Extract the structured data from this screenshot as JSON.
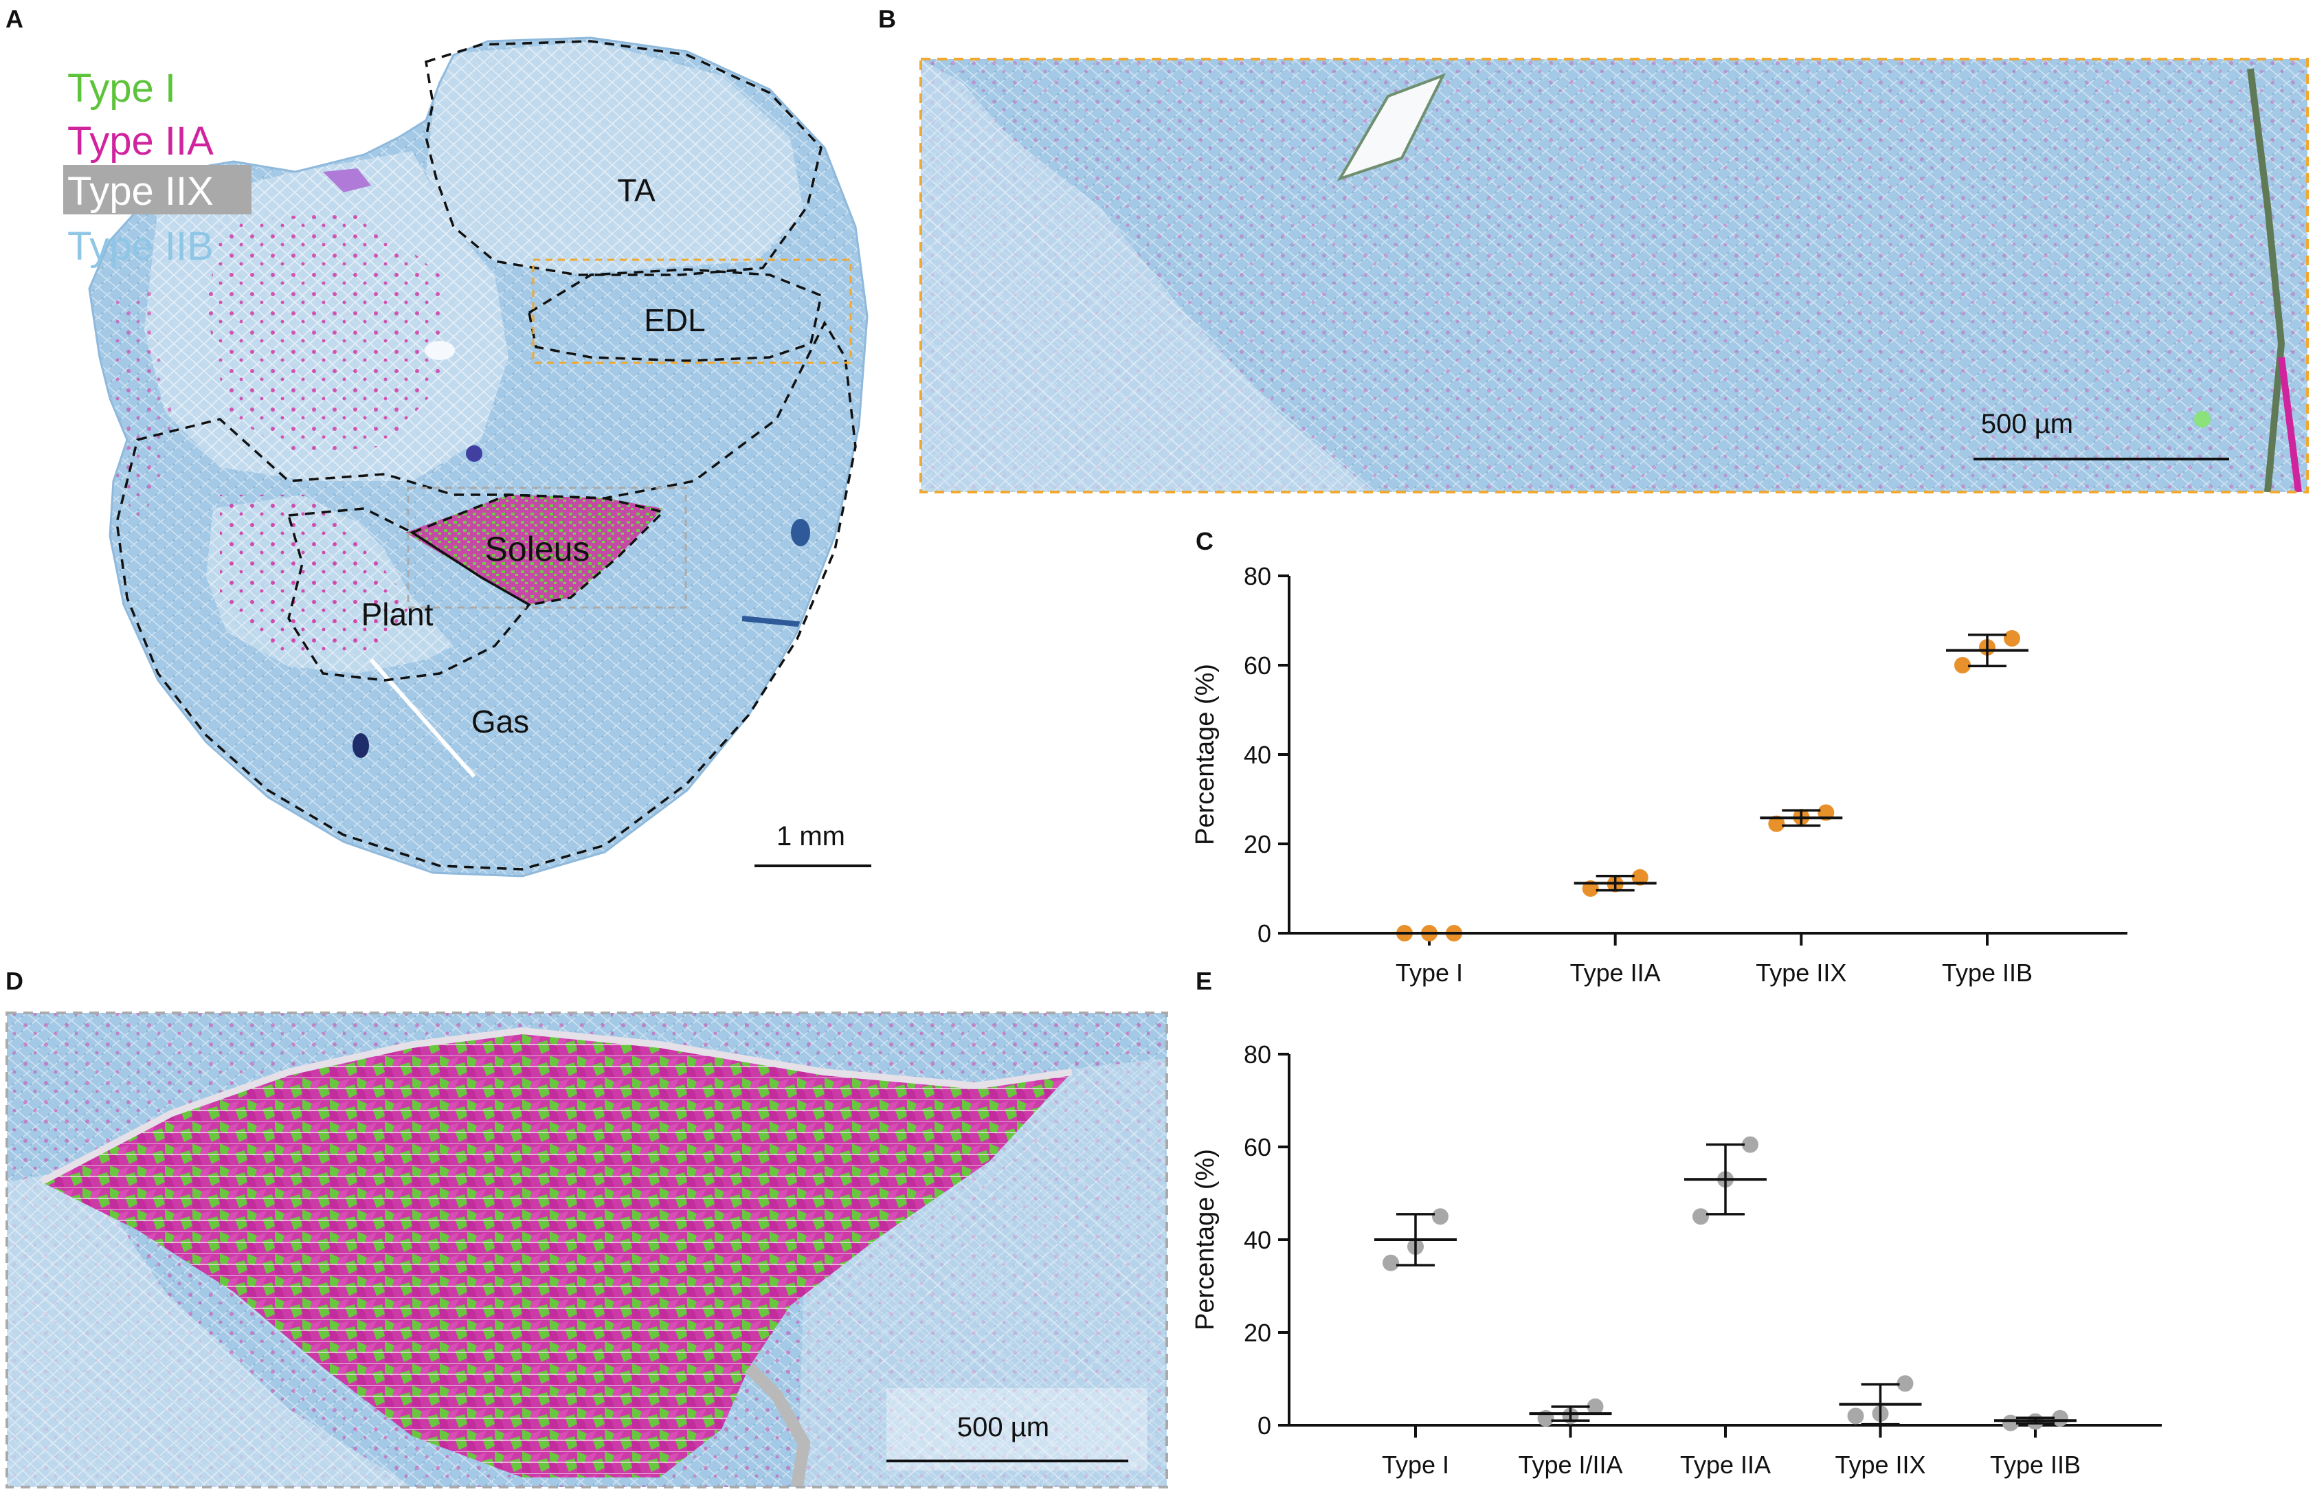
{
  "panels": {
    "A": {
      "label": "A",
      "legend": [
        {
          "text": "Type I",
          "color": "#5cc33a"
        },
        {
          "text": "Type IIA",
          "color": "#d0249e"
        },
        {
          "text": "Type IIX",
          "color": "#ffffff",
          "bg": "#a9a9a9"
        },
        {
          "text": "Type IIB",
          "color": "#8fc6e6"
        }
      ],
      "regions": [
        "TA",
        "EDL",
        "Soleus",
        "Plant",
        "Gas"
      ],
      "scale_bar": "1 mm"
    },
    "B": {
      "label": "B",
      "scale_bar": "500 µm"
    },
    "C": {
      "label": "C"
    },
    "D": {
      "label": "D",
      "scale_bar": "500 µm"
    },
    "E": {
      "label": "E"
    }
  },
  "colors": {
    "tissue_blue": "#9fc6e3",
    "magenta": "#d0249e",
    "green": "#62c23f",
    "orange": "#e8902a",
    "grey_point": "#a8a8a8",
    "box_orange": "#f0a830",
    "box_grey": "#aaaaaa"
  },
  "chart_data": [
    {
      "panel": "C",
      "type": "scatter",
      "title": "",
      "xlabel": "",
      "ylabel": "Percentage (%)",
      "ylim": [
        0,
        80
      ],
      "yticks": [
        0,
        20,
        40,
        60,
        80
      ],
      "categories": [
        "Type I",
        "Type IIA",
        "Type IIX",
        "Type IIB"
      ],
      "points": [
        [
          0,
          0,
          0
        ],
        [
          10,
          11,
          12.5
        ],
        [
          24.5,
          26,
          27
        ],
        [
          60,
          64,
          66
        ]
      ],
      "mean": [
        0,
        11.2,
        25.8,
        63.3
      ],
      "sd": [
        0,
        1.6,
        1.7,
        3.5
      ],
      "color": "#e8902a"
    },
    {
      "panel": "E",
      "type": "scatter",
      "title": "",
      "xlabel": "",
      "ylabel": "Percentage (%)",
      "ylim": [
        0,
        80
      ],
      "yticks": [
        0,
        20,
        40,
        60,
        80
      ],
      "categories": [
        "Type I",
        "Type I/IIA",
        "Type IIA",
        "Type IIX",
        "Type IIB"
      ],
      "points": [
        [
          35,
          38.5,
          45
        ],
        [
          1.5,
          2,
          4
        ],
        [
          45,
          53,
          60.5
        ],
        [
          2,
          2.5,
          9
        ],
        [
          0.5,
          0.8,
          1.5
        ]
      ],
      "mean": [
        40,
        2.5,
        53,
        4.5,
        1
      ],
      "sd": [
        5.5,
        1.5,
        7.5,
        4.3,
        0.6
      ],
      "color": "#a8a8a8"
    }
  ]
}
